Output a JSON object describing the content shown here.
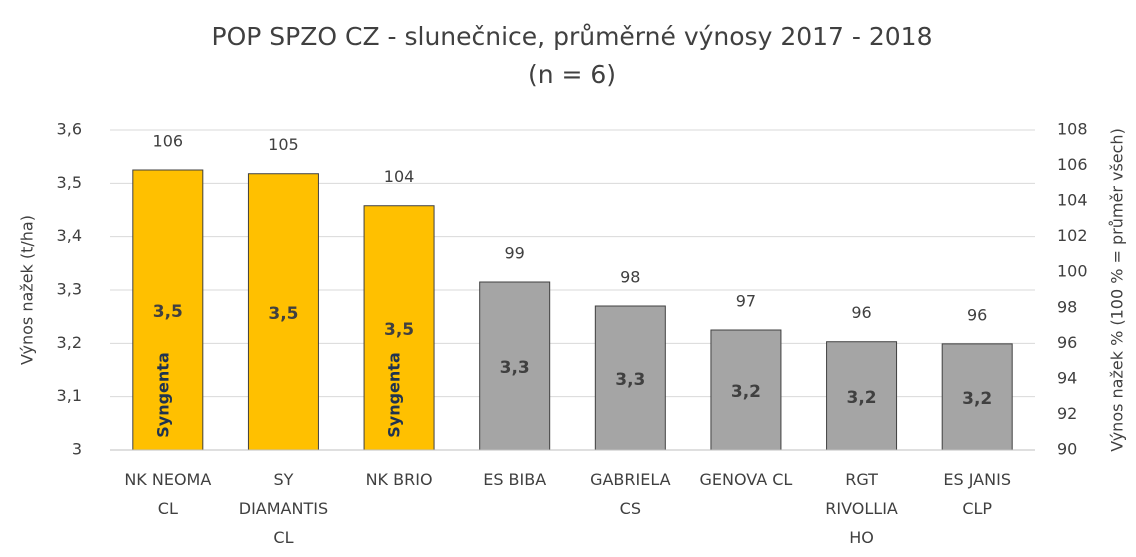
{
  "chart_data": {
    "type": "bar",
    "title": "POP SPZO CZ - slunečnice, průměrné výnosy 2017 - 2018 (n = 6)",
    "y_label": "Výnos nažek (t/ha)",
    "y2_label": "Výnos nažek % (100 % = průměr všech)",
    "categories": [
      "NK NEOMA CL",
      "SY DIAMANTIS CL",
      "NK BRIO",
      "ES BIBA",
      "GABRIELA CS",
      "GENOVA CL",
      "RGT RIVOLLIA HO",
      "ES JANIS CLP"
    ],
    "series": [
      {
        "colors": [
          "#FFC000",
          "#FFC000",
          "#FFC000",
          "#A5A5A5",
          "#A5A5A5",
          "#A5A5A5",
          "#A5A5A5",
          "#A5A5A5"
        ],
        "values": [
          3.525,
          3.518,
          3.458,
          3.315,
          3.27,
          3.225,
          3.203,
          3.199
        ],
        "value_labels": [
          "3,5",
          "3,5",
          "3,5",
          "3,3",
          "3,3",
          "3,2",
          "3,2",
          "3,2"
        ]
      },
      {
        "axis": "y2",
        "values": [
          106,
          105,
          104,
          99,
          98,
          97,
          96,
          96
        ]
      }
    ],
    "bar_annotations": [
      "Syngenta",
      null,
      "Syngenta",
      null,
      null,
      null,
      null,
      null
    ],
    "ylim": [
      3,
      3.6
    ],
    "yticks": [
      3,
      {
        "value": 3.1,
        "label": "3,1"
      },
      {
        "value": 3.2,
        "label": "3,2"
      },
      {
        "value": 3.3,
        "label": "3,3"
      },
      {
        "value": 3.4,
        "label": "3,4"
      },
      {
        "value": 3.5,
        "label": "3,5"
      },
      {
        "value": 3.6,
        "label": "3,6"
      }
    ],
    "y2lim": [
      90,
      108
    ],
    "y2ticks": [
      90,
      92,
      94,
      96,
      98,
      100,
      102,
      104,
      106,
      108
    ],
    "grid": true
  }
}
